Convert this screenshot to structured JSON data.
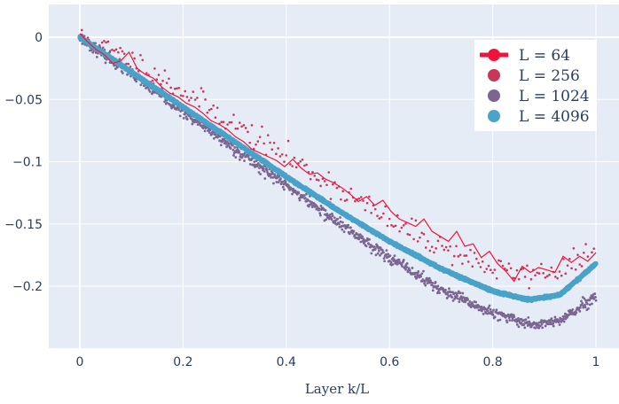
{
  "chart_data": {
    "type": "scatter",
    "title": "",
    "xlabel": "Layer k/L",
    "ylabel": "",
    "xlim": [
      -0.06,
      1.04
    ],
    "ylim": [
      -0.25,
      0.027
    ],
    "x_ticks": [
      0,
      0.2,
      0.4,
      0.6,
      0.8,
      1
    ],
    "x_tick_labels": [
      "0",
      "0.2",
      "0.4",
      "0.6",
      "0.8",
      "1"
    ],
    "y_ticks": [
      0,
      -0.05,
      -0.1,
      -0.15,
      -0.2
    ],
    "y_tick_labels": [
      "0",
      "−0.05",
      "−0.1",
      "−0.15",
      "−0.2"
    ],
    "grid": true,
    "legend_position": "top-right",
    "colors": {
      "plot_bg": "#e5ecf6",
      "grid": "#ffffff"
    },
    "series": [
      {
        "name": "L = 64",
        "style": "line",
        "color": "#f0143c",
        "x": [
          0,
          0.0159,
          0.0317,
          0.0476,
          0.0635,
          0.0794,
          0.0952,
          0.1111,
          0.127,
          0.1429,
          0.1587,
          0.1746,
          0.1905,
          0.2063,
          0.2222,
          0.2381,
          0.254,
          0.2698,
          0.2857,
          0.3016,
          0.3175,
          0.3333,
          0.3492,
          0.3651,
          0.381,
          0.3968,
          0.4127,
          0.4286,
          0.4444,
          0.4603,
          0.4762,
          0.4921,
          0.5079,
          0.5238,
          0.5397,
          0.5556,
          0.5714,
          0.5873,
          0.6032,
          0.619,
          0.6349,
          0.6508,
          0.6667,
          0.6825,
          0.6984,
          0.7143,
          0.7302,
          0.746,
          0.7619,
          0.7778,
          0.7937,
          0.8095,
          0.8254,
          0.8413,
          0.8571,
          0.873,
          0.8889,
          0.9048,
          0.9206,
          0.9365,
          0.9524,
          0.9683,
          0.9841,
          1
        ],
        "y": [
          0.003,
          -0.004,
          -0.01,
          -0.014,
          -0.021,
          -0.019,
          -0.012,
          -0.025,
          -0.03,
          -0.033,
          -0.04,
          -0.045,
          -0.048,
          -0.053,
          -0.056,
          -0.061,
          -0.067,
          -0.07,
          -0.074,
          -0.08,
          -0.084,
          -0.09,
          -0.093,
          -0.096,
          -0.099,
          -0.104,
          -0.098,
          -0.105,
          -0.11,
          -0.109,
          -0.114,
          -0.117,
          -0.121,
          -0.126,
          -0.132,
          -0.128,
          -0.135,
          -0.131,
          -0.14,
          -0.146,
          -0.149,
          -0.152,
          -0.146,
          -0.156,
          -0.16,
          -0.164,
          -0.156,
          -0.168,
          -0.166,
          -0.177,
          -0.172,
          -0.182,
          -0.188,
          -0.196,
          -0.184,
          -0.189,
          -0.185,
          -0.187,
          -0.189,
          -0.176,
          -0.181,
          -0.176,
          -0.18,
          -0.173
        ]
      },
      {
        "name": "L = 256",
        "style": "markers",
        "color": "#c8375a",
        "generator": {
          "n": 256,
          "noise": 0.005,
          "seed": 11
        }
      },
      {
        "name": "L = 1024",
        "style": "markers",
        "color": "#7a6690",
        "generator": {
          "n": 1024,
          "noise": 0.0022,
          "seed": 23
        }
      },
      {
        "name": "L = 4096",
        "style": "markers",
        "color": "#4aa3c8",
        "generator": {
          "n": 4096,
          "noise": 0.0004,
          "seed": 37
        }
      }
    ],
    "curve_keypoints": {
      "L = 256": {
        "x": [
          0,
          0.1,
          0.2,
          0.3,
          0.4,
          0.5,
          0.6,
          0.7,
          0.8,
          0.86,
          0.93,
          1
        ],
        "y": [
          0,
          -0.018,
          -0.043,
          -0.07,
          -0.096,
          -0.121,
          -0.148,
          -0.168,
          -0.186,
          -0.191,
          -0.187,
          -0.174
        ]
      },
      "L = 1024": {
        "x": [
          0,
          0.1,
          0.2,
          0.3,
          0.4,
          0.5,
          0.6,
          0.7,
          0.8,
          0.88,
          0.93,
          1
        ],
        "y": [
          0,
          -0.03,
          -0.06,
          -0.09,
          -0.119,
          -0.149,
          -0.177,
          -0.203,
          -0.222,
          -0.231,
          -0.228,
          -0.209
        ]
      },
      "L = 4096": {
        "x": [
          0,
          0.1,
          0.2,
          0.3,
          0.4,
          0.5,
          0.6,
          0.7,
          0.8,
          0.87,
          0.93,
          1
        ],
        "y": [
          0,
          -0.028,
          -0.056,
          -0.084,
          -0.112,
          -0.139,
          -0.164,
          -0.186,
          -0.204,
          -0.211,
          -0.207,
          -0.182
        ]
      }
    }
  }
}
